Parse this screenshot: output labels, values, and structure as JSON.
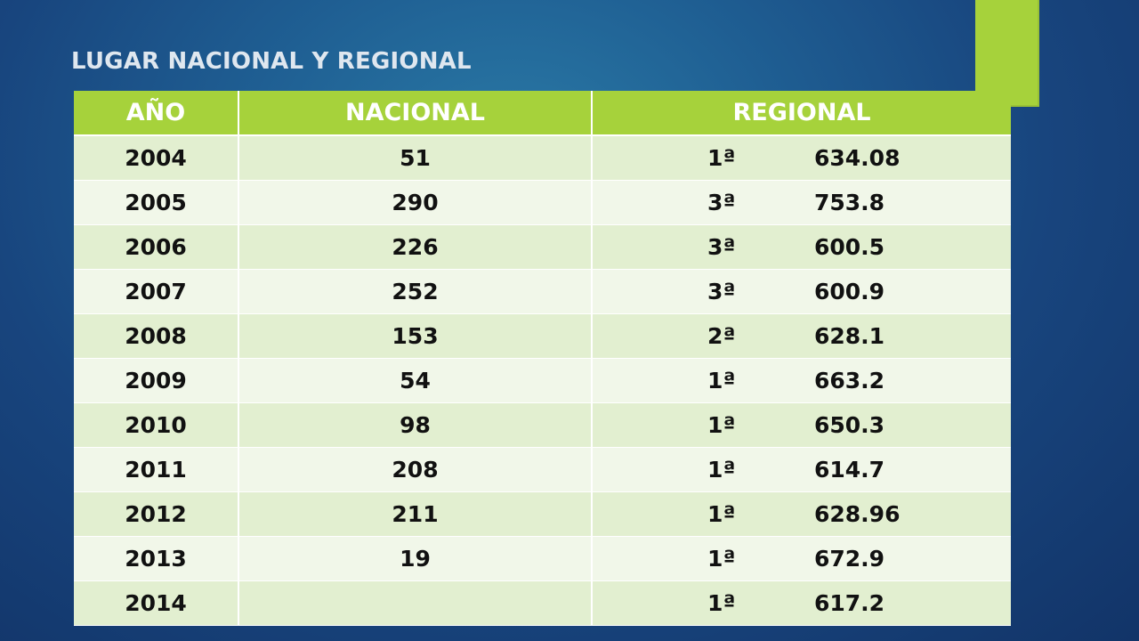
{
  "slide": {
    "title": "LUGAR NACIONAL Y REGIONAL",
    "accent_color": "#a6d23b"
  },
  "table": {
    "headers": [
      "AÑO",
      "NACIONAL",
      "REGIONAL"
    ],
    "rows": [
      {
        "anio": "2004",
        "nacional": "51",
        "regional_rank": "1ª",
        "regional_score": "634.08"
      },
      {
        "anio": "2005",
        "nacional": "290",
        "regional_rank": "3ª",
        "regional_score": "753.8"
      },
      {
        "anio": "2006",
        "nacional": "226",
        "regional_rank": "3ª",
        "regional_score": "600.5"
      },
      {
        "anio": "2007",
        "nacional": "252",
        "regional_rank": "3ª",
        "regional_score": "600.9"
      },
      {
        "anio": "2008",
        "nacional": "153",
        "regional_rank": "2ª",
        "regional_score": "628.1"
      },
      {
        "anio": "2009",
        "nacional": "54",
        "regional_rank": "1ª",
        "regional_score": "663.2"
      },
      {
        "anio": "2010",
        "nacional": "98",
        "regional_rank": "1ª",
        "regional_score": "650.3"
      },
      {
        "anio": "2011",
        "nacional": "208",
        "regional_rank": "1ª",
        "regional_score": "614.7"
      },
      {
        "anio": "2012",
        "nacional": "211",
        "regional_rank": "1ª",
        "regional_score": "628.96"
      },
      {
        "anio": "2013",
        "nacional": "19",
        "regional_rank": "1ª",
        "regional_score": "672.9"
      },
      {
        "anio": "2014",
        "nacional": "",
        "regional_rank": "1ª",
        "regional_score": "617.2"
      }
    ]
  }
}
